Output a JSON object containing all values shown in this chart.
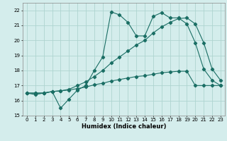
{
  "title": "",
  "xlabel": "Humidex (Indice chaleur)",
  "xlim": [
    -0.5,
    23.5
  ],
  "ylim": [
    15,
    22.5
  ],
  "yticks": [
    15,
    16,
    17,
    18,
    19,
    20,
    21,
    22
  ],
  "xticks": [
    0,
    1,
    2,
    3,
    4,
    5,
    6,
    7,
    8,
    9,
    10,
    11,
    12,
    13,
    14,
    15,
    16,
    17,
    18,
    19,
    20,
    21,
    22,
    23
  ],
  "bg_color": "#d4edec",
  "grid_color": "#aed4d0",
  "line_color": "#1a6e64",
  "line1": {
    "x": [
      0,
      1,
      2,
      3,
      4,
      5,
      6,
      7,
      8,
      9,
      10,
      11,
      12,
      13,
      14,
      15,
      16,
      17,
      18,
      19,
      20,
      21,
      22,
      23
    ],
    "y": [
      16.5,
      16.4,
      16.5,
      16.6,
      15.5,
      16.1,
      16.7,
      17.0,
      18.0,
      18.9,
      21.9,
      21.7,
      21.2,
      20.3,
      20.3,
      21.6,
      21.85,
      21.5,
      21.5,
      21.1,
      19.85,
      18.1,
      17.35,
      17.0
    ]
  },
  "line2": {
    "x": [
      0,
      1,
      2,
      3,
      4,
      5,
      6,
      7,
      8,
      9,
      10,
      11,
      12,
      13,
      14,
      15,
      16,
      17,
      18,
      19,
      20,
      21,
      22,
      23
    ],
    "y": [
      16.5,
      16.5,
      16.5,
      16.6,
      16.65,
      16.7,
      16.8,
      16.9,
      17.05,
      17.15,
      17.3,
      17.4,
      17.5,
      17.6,
      17.65,
      17.75,
      17.85,
      17.9,
      17.95,
      17.95,
      17.0,
      17.0,
      17.0,
      17.0
    ]
  },
  "line3": {
    "x": [
      0,
      1,
      2,
      3,
      4,
      5,
      6,
      7,
      8,
      9,
      10,
      11,
      12,
      13,
      14,
      15,
      16,
      17,
      18,
      19,
      20,
      21,
      22,
      23
    ],
    "y": [
      16.5,
      16.5,
      16.5,
      16.6,
      16.65,
      16.75,
      17.0,
      17.25,
      17.6,
      18.0,
      18.5,
      18.9,
      19.3,
      19.7,
      20.0,
      20.5,
      20.9,
      21.2,
      21.45,
      21.5,
      21.1,
      19.85,
      18.1,
      17.35
    ]
  }
}
